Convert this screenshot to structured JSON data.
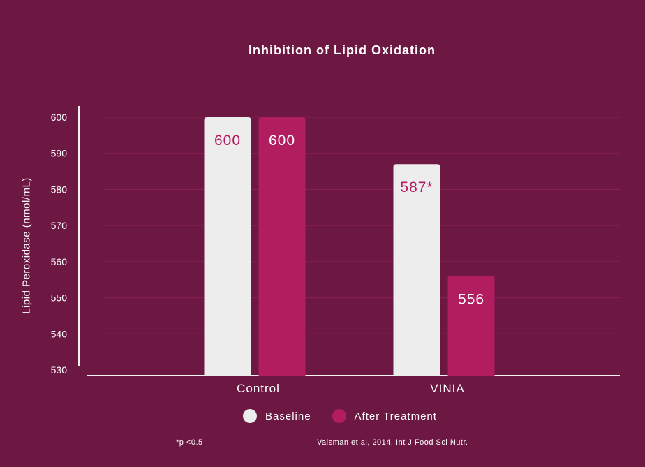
{
  "colors": {
    "background": "#6c1842",
    "baseline": "#ededed",
    "after": "#b21d5f",
    "grid": "#8a2152",
    "axis": "#f2f2f2"
  },
  "chart_data": {
    "type": "bar",
    "title": "Inhibition of Lipid Oxidation",
    "ylabel": "Lipid Peroxidase (nmol/mL)",
    "xlabel": "",
    "categories": [
      "Control",
      "VINIA"
    ],
    "series": [
      {
        "name": "Baseline",
        "values": [
          600,
          587
        ],
        "labels": [
          "600",
          "587*"
        ]
      },
      {
        "name": "After Treatment",
        "values": [
          600,
          556
        ],
        "labels": [
          "600",
          "556"
        ]
      }
    ],
    "ylim": [
      530,
      600
    ],
    "yticks": [
      "600",
      "590",
      "580",
      "570",
      "560",
      "550",
      "540",
      "530"
    ],
    "grid": true,
    "legend_position": "bottom"
  },
  "footnote": "*p <0.5",
  "citation": "Vaisman et al, 2014, Int J Food Sci Nutr."
}
